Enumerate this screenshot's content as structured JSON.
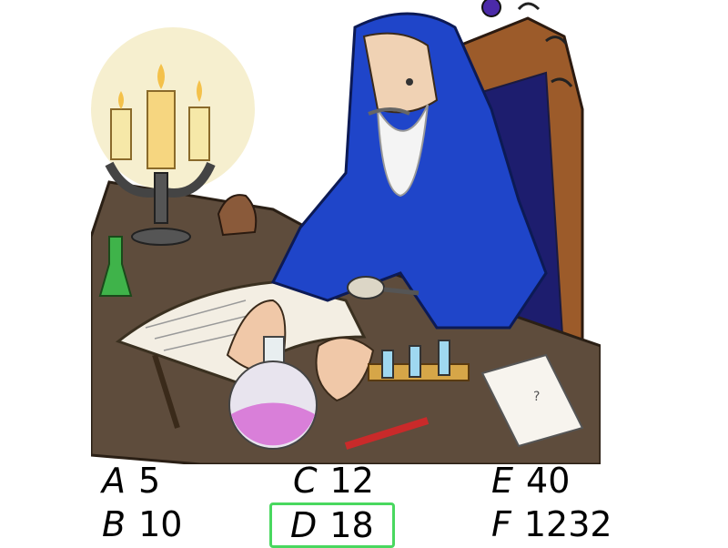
{
  "illustration": {
    "subject": "wizard-with-potion-icon"
  },
  "answers": [
    {
      "letter": "A",
      "value": "5",
      "selected": false
    },
    {
      "letter": "B",
      "value": "10",
      "selected": false
    },
    {
      "letter": "C",
      "value": "12",
      "selected": false
    },
    {
      "letter": "D",
      "value": "18",
      "selected": true
    },
    {
      "letter": "E",
      "value": "40",
      "selected": false
    },
    {
      "letter": "F",
      "value": "1232",
      "selected": false
    }
  ],
  "colors": {
    "selection_border": "#49d85f",
    "robe": "#1f45c9",
    "potion": "#d97fd9",
    "desk": "#5a4a3a"
  }
}
